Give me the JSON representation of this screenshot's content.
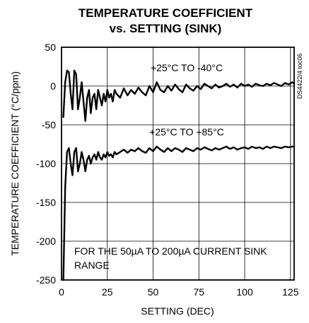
{
  "chart_data": {
    "type": "line",
    "title_line1": "TEMPERATURE COEFFICIENT",
    "title_line2": "vs. SETTING (SINK)",
    "xlabel": "SETTING (DEC)",
    "ylabel": "TEMPERATURE COEFFICIENT (°C/ppm)",
    "xlim": [
      0,
      127
    ],
    "ylim": [
      -250,
      50
    ],
    "x_ticks": [
      0,
      25,
      50,
      75,
      100,
      125
    ],
    "y_ticks": [
      50,
      0,
      -50,
      -100,
      -150,
      -200,
      -250
    ],
    "grid": true,
    "legend": "none",
    "series": [
      {
        "name": "+25°C TO -40°C",
        "x": [
          1,
          2,
          3,
          4,
          5,
          6,
          7,
          8,
          9,
          10,
          11,
          12,
          13,
          14,
          15,
          16,
          17,
          18,
          19,
          20,
          21,
          22,
          23,
          24,
          25,
          26,
          27,
          28,
          29,
          30,
          32,
          34,
          36,
          38,
          40,
          42,
          44,
          46,
          48,
          50,
          52,
          54,
          56,
          58,
          60,
          62,
          64,
          66,
          68,
          70,
          72,
          74,
          76,
          78,
          80,
          82,
          84,
          86,
          88,
          90,
          92,
          94,
          96,
          98,
          100,
          102,
          104,
          106,
          108,
          110,
          112,
          114,
          116,
          118,
          120,
          122,
          124,
          126,
          127
        ],
        "y": [
          -40,
          5,
          20,
          18,
          -10,
          -30,
          20,
          15,
          -30,
          -15,
          5,
          -20,
          -45,
          -15,
          -5,
          -35,
          -15,
          -10,
          -30,
          -5,
          -15,
          -25,
          -10,
          -20,
          -5,
          -15,
          -10,
          -20,
          -5,
          -10,
          -15,
          -3,
          -12,
          -5,
          -10,
          -2,
          -8,
          -12,
          0,
          -8,
          5,
          -5,
          -8,
          0,
          -6,
          2,
          -4,
          -8,
          2,
          -3,
          -6,
          0,
          -4,
          3,
          0,
          -3,
          2,
          -2,
          0,
          3,
          -1,
          2,
          -2,
          3,
          0,
          2,
          -1,
          3,
          1,
          0,
          3,
          1,
          4,
          2,
          0,
          4,
          2,
          5,
          3
        ],
        "color": "#000000"
      },
      {
        "name": "+25°C TO +85°C",
        "x": [
          1,
          2,
          3,
          4,
          5,
          6,
          7,
          8,
          9,
          10,
          11,
          12,
          13,
          14,
          15,
          16,
          17,
          18,
          19,
          20,
          21,
          22,
          23,
          24,
          25,
          26,
          27,
          28,
          29,
          30,
          32,
          34,
          36,
          38,
          40,
          42,
          44,
          46,
          48,
          50,
          52,
          54,
          56,
          58,
          60,
          62,
          64,
          66,
          68,
          70,
          72,
          74,
          76,
          78,
          80,
          82,
          84,
          86,
          88,
          90,
          92,
          94,
          96,
          98,
          100,
          102,
          104,
          106,
          108,
          110,
          112,
          114,
          116,
          118,
          120,
          122,
          124,
          126,
          127
        ],
        "y": [
          -250,
          -130,
          -85,
          -80,
          -100,
          -115,
          -85,
          -80,
          -110,
          -100,
          -85,
          -95,
          -110,
          -95,
          -90,
          -100,
          -92,
          -88,
          -95,
          -85,
          -92,
          -95,
          -88,
          -92,
          -85,
          -90,
          -88,
          -92,
          -85,
          -88,
          -85,
          -82,
          -86,
          -82,
          -84,
          -80,
          -84,
          -86,
          -80,
          -84,
          -78,
          -82,
          -85,
          -80,
          -84,
          -80,
          -82,
          -85,
          -80,
          -82,
          -84,
          -80,
          -82,
          -79,
          -81,
          -83,
          -80,
          -82,
          -80,
          -78,
          -81,
          -79,
          -82,
          -80,
          -79,
          -81,
          -78,
          -80,
          -79,
          -81,
          -78,
          -80,
          -78,
          -79,
          -80,
          -78,
          -79,
          -78,
          -78
        ],
        "color": "#000000"
      }
    ],
    "annotations": {
      "upper_curve_label": "+25°C TO -40°C",
      "lower_curve_label": "+25°C TO +85°C",
      "note_line1": "FOR THE 50µA TO 200µA CURRENT SINK",
      "note_line2": "RANGE",
      "figure_code": "DS4422/4 toc06"
    }
  }
}
